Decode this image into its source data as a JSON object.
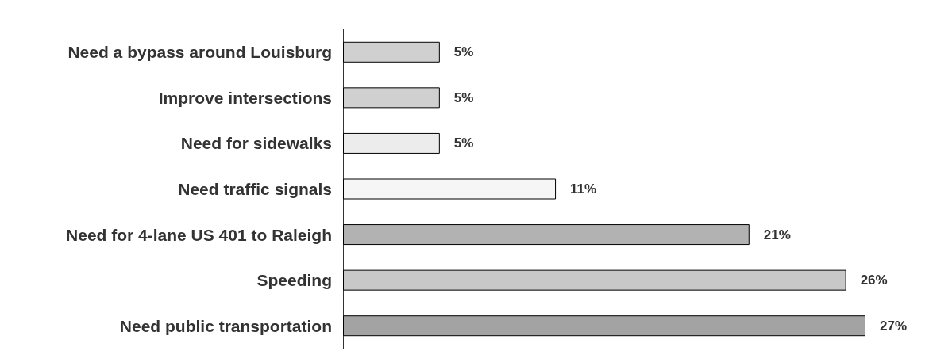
{
  "chart_data": {
    "type": "bar",
    "orientation": "horizontal",
    "categories": [
      "Need a bypass around Louisburg",
      "Improve intersections",
      "Need for sidewalks",
      "Need traffic signals",
      "Need for 4-lane US 401 to Raleigh",
      "Speeding",
      "Need public transportation"
    ],
    "values": [
      5,
      5,
      5,
      11,
      21,
      26,
      27
    ],
    "value_labels": [
      "5%",
      "5%",
      "5%",
      "11%",
      "21%",
      "26%",
      "27%"
    ],
    "colors": [
      "#d0d0d0",
      "#d0d0d0",
      "#ececec",
      "#f6f6f6",
      "#b2b2b2",
      "#c8c8c8",
      "#a3a3a3"
    ],
    "grid": false
  }
}
